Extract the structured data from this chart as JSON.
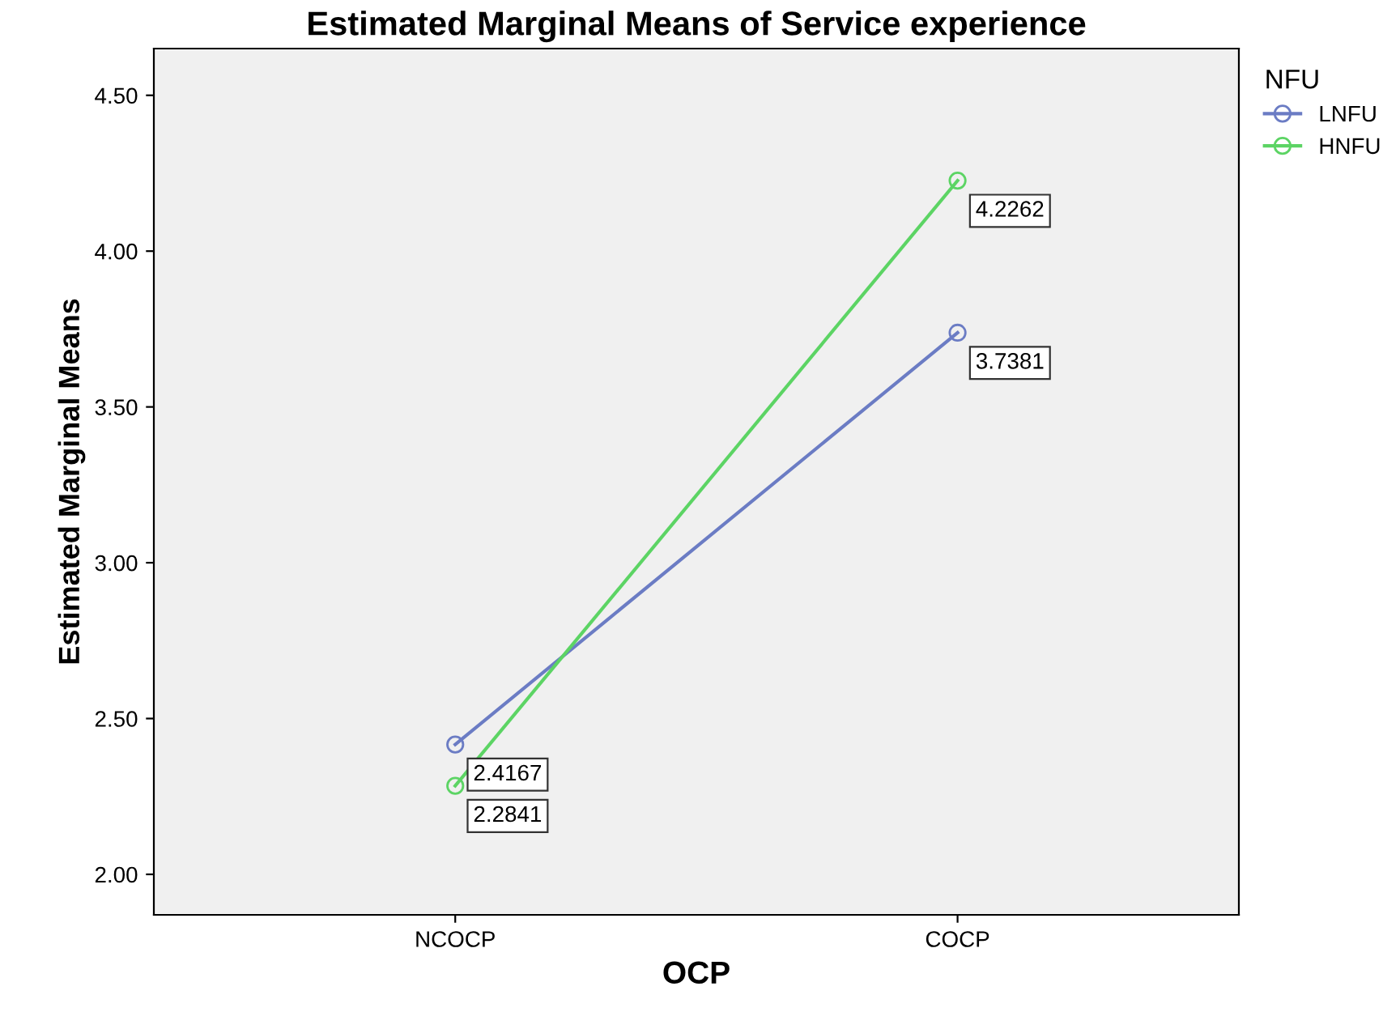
{
  "chart_data": {
    "type": "line",
    "title": "Estimated Marginal Means of Service experience",
    "xlabel": "OCP",
    "ylabel": "Estimated Marginal Means",
    "legend_title": "NFU",
    "legend": "right",
    "marker": "circle",
    "data_labels": true,
    "categories": [
      "NCOCP",
      "COCP"
    ],
    "series": [
      {
        "name": "LNFU",
        "color": "#6b7cc4",
        "values": [
          2.4167,
          3.7381
        ]
      },
      {
        "name": "HNFU",
        "color": "#5cd464",
        "values": [
          2.2841,
          4.2262
        ]
      }
    ],
    "ylim": [
      1.87,
      4.65
    ],
    "yticks": [
      {
        "value": 2,
        "label": "2.00"
      },
      {
        "value": 2.5,
        "label": "2.50"
      },
      {
        "value": 3,
        "label": "3.00"
      },
      {
        "value": 3.5,
        "label": "3.50"
      },
      {
        "value": 4,
        "label": "4.00"
      },
      {
        "value": 4.5,
        "label": "4.50"
      }
    ]
  }
}
